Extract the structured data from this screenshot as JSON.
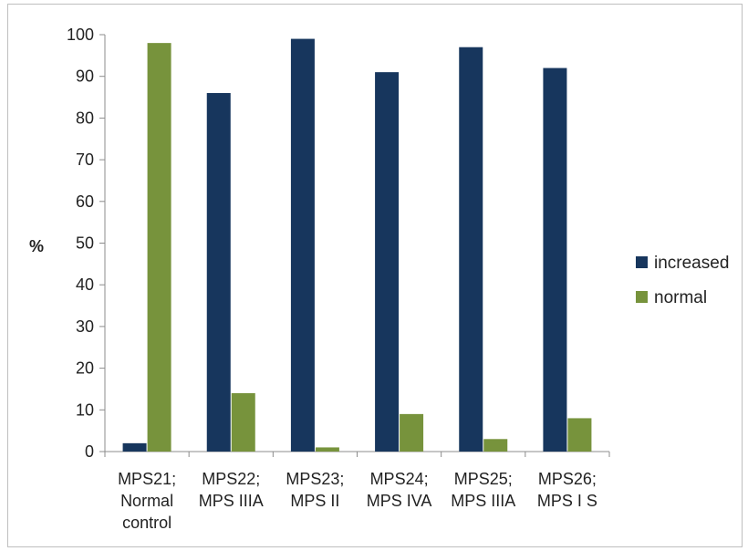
{
  "chart_data": {
    "type": "bar",
    "categories": [
      [
        "MPS21;",
        "Normal",
        "control"
      ],
      [
        "MPS22;",
        "MPS IIIA"
      ],
      [
        "MPS23;",
        "MPS II"
      ],
      [
        "MPS24;",
        "MPS IVA"
      ],
      [
        "MPS25;",
        "MPS IIIA"
      ],
      [
        "MPS26;",
        "MPS I S"
      ]
    ],
    "series": [
      {
        "name": "increased",
        "color": "#17365d",
        "values": [
          2,
          86,
          99,
          91,
          97,
          92
        ]
      },
      {
        "name": "normal",
        "color": "#77933c",
        "values": [
          98,
          14,
          1,
          9,
          3,
          8
        ]
      }
    ],
    "ylabel": "%",
    "ylim": [
      0,
      100
    ],
    "yticks": [
      0,
      10,
      20,
      30,
      40,
      50,
      60,
      70,
      80,
      90,
      100
    ],
    "grid": false,
    "legend": "right"
  }
}
